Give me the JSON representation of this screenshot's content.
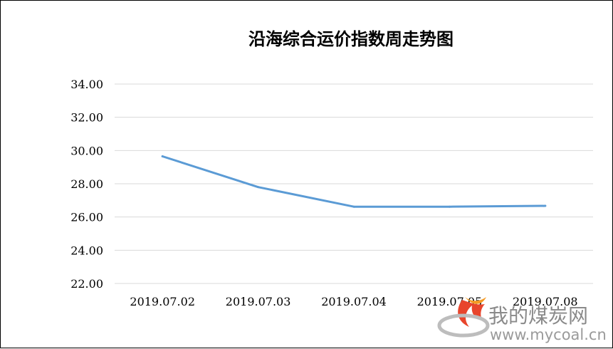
{
  "chart_data": {
    "type": "line",
    "title": "沿海综合运价指数周走势图",
    "categories": [
      "2019.07.02",
      "2019.07.03",
      "2019.07.04",
      "2019.07.05",
      "2019.07.08"
    ],
    "series": [
      {
        "values": [
          29.65,
          27.8,
          26.62,
          26.62,
          26.67
        ],
        "color": "#5b9bd5"
      }
    ],
    "yticks": [
      "22.00",
      "24.00",
      "26.00",
      "28.00",
      "30.00",
      "32.00",
      "34.00"
    ],
    "ylim": [
      22,
      34
    ],
    "grid": true,
    "gridColor": "#d9d9d9"
  },
  "watermark": {
    "name": "我的煤炭网",
    "url": "www.mycoal.cn",
    "logo_colors": [
      "#e8452c",
      "#f59a23",
      "#bdbdbd"
    ]
  }
}
